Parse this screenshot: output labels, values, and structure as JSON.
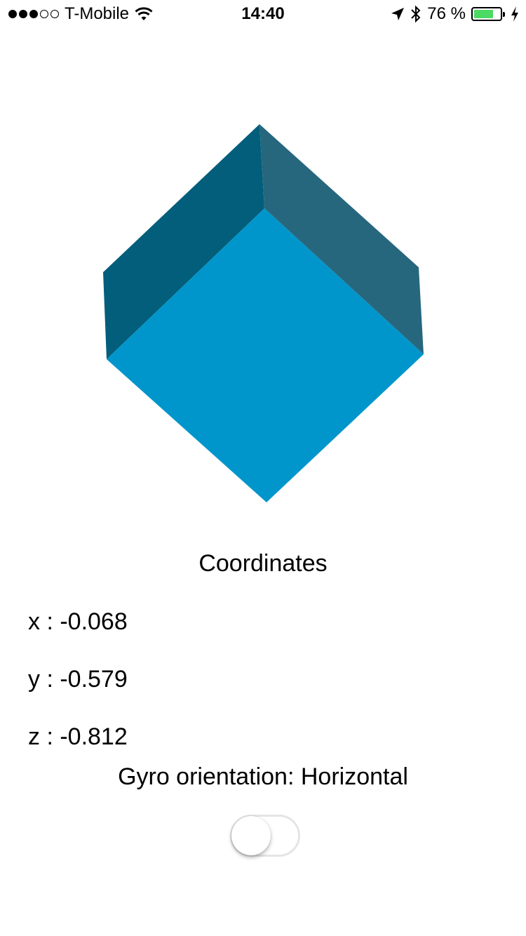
{
  "status_bar": {
    "carrier": "T-Mobile",
    "time": "14:40",
    "battery_text": "76 %",
    "battery_level": 0.76,
    "signal_bars": 3,
    "signal_total": 5,
    "icons": [
      "wifi-icon",
      "location-arrow-icon",
      "bluetooth-icon",
      "battery-icon",
      "charging-bolt-icon"
    ]
  },
  "cube": {
    "colors": {
      "front": "#0096cb",
      "left": "#025e7b",
      "right": "#26677e"
    }
  },
  "coordinates": {
    "heading": "Coordinates",
    "x_text": "x : -0.068",
    "y_text": "y : -0.579",
    "z_text": "z : -0.812"
  },
  "gyro": {
    "orientation_text": "Gyro orientation: Horizontal",
    "toggle_on": false
  },
  "colors": {
    "battery_fill": "#4cd964",
    "switch_border": "#e5e5e5"
  }
}
